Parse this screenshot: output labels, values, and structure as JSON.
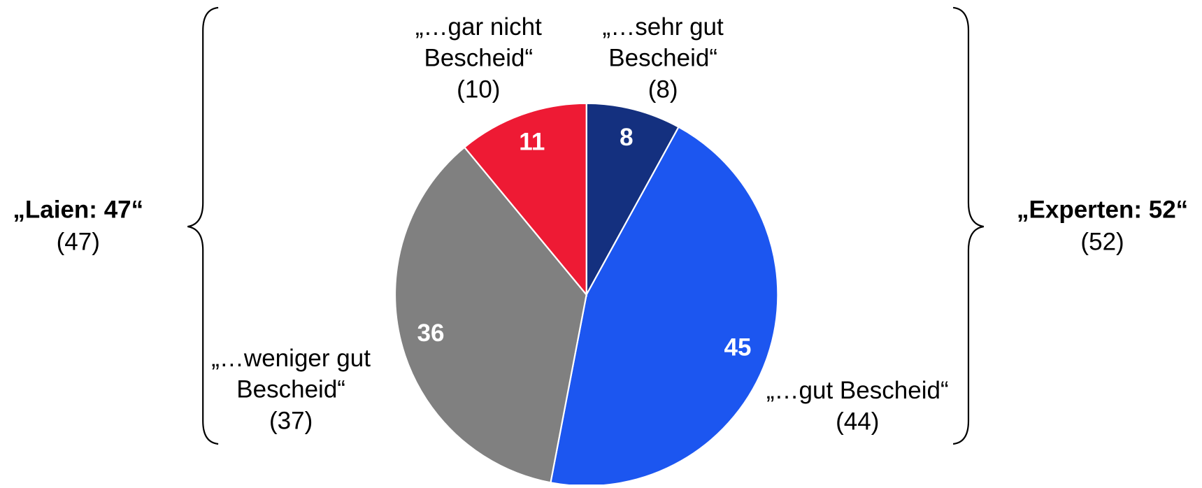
{
  "chart_data": {
    "type": "pie",
    "categories": [
      {
        "lines": [
          "„…sehr gut",
          "Bescheid“"
        ],
        "prior_label": "(8)"
      },
      {
        "lines": [
          "„…gut Bescheid“"
        ],
        "prior_label": "(44)"
      },
      {
        "lines": [
          "„…weniger gut",
          "Bescheid“"
        ],
        "prior_label": "(37)"
      },
      {
        "lines": [
          "„…gar nicht",
          "Bescheid“"
        ],
        "prior_label": "(10)"
      }
    ],
    "values": [
      8,
      45,
      36,
      11
    ],
    "colors": [
      "#14307f",
      "#1c56f0",
      "#808080",
      "#ee1a34"
    ],
    "groups": [
      {
        "label": "„Laien: 47“",
        "prior_label": "(47)"
      },
      {
        "label": "„Experten: 52“",
        "prior_label": "(52)"
      }
    ]
  }
}
